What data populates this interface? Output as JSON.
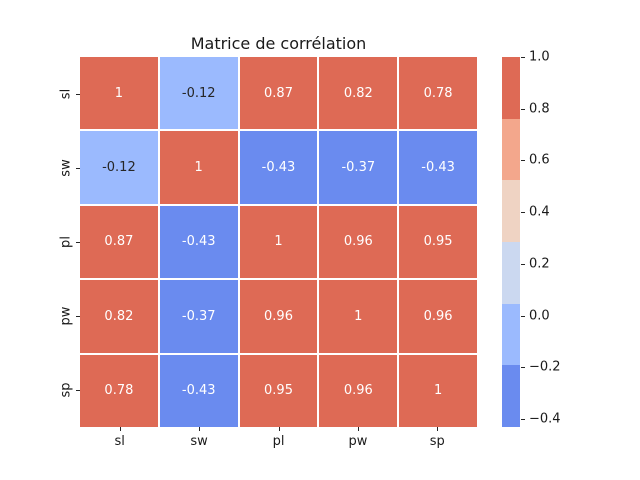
{
  "figure": {
    "background": "#ffffff"
  },
  "chart_data": {
    "type": "heatmap",
    "title": "Matrice de corrélation",
    "x_labels": [
      "sl",
      "sw",
      "pl",
      "pw",
      "sp"
    ],
    "y_labels": [
      "sl",
      "sw",
      "pl",
      "pw",
      "sp"
    ],
    "matrix": [
      [
        1,
        -0.12,
        0.87,
        0.82,
        0.78
      ],
      [
        -0.12,
        1,
        -0.43,
        -0.37,
        -0.43
      ],
      [
        0.87,
        -0.43,
        1,
        0.96,
        0.95
      ],
      [
        0.82,
        -0.37,
        0.96,
        1,
        0.96
      ],
      [
        0.78,
        -0.43,
        0.95,
        0.96,
        1
      ]
    ],
    "cell_text": [
      [
        "1",
        "-0.12",
        "0.87",
        "0.82",
        "0.78"
      ],
      [
        "-0.12",
        "1",
        "-0.43",
        "-0.37",
        "-0.43"
      ],
      [
        "0.87",
        "-0.43",
        "1",
        "0.96",
        "0.95"
      ],
      [
        "0.82",
        "-0.37",
        "0.96",
        "1",
        "0.96"
      ],
      [
        "0.78",
        "-0.43",
        "0.95",
        "0.96",
        "1"
      ]
    ],
    "grid_line_color": "#ffffff",
    "colormap": {
      "name": "coolwarm-discrete-6",
      "vmin": -0.43,
      "vmax": 1.0,
      "n_bins": 6,
      "colors": [
        "#6A8BEF",
        "#9BBAFE",
        "#CBD8F0",
        "#EFD3C3",
        "#F3A78C",
        "#DE6A55"
      ],
      "text_colors": [
        "#ffffff",
        "#262626",
        "#262626",
        "#262626",
        "#262626",
        "#ffffff"
      ]
    },
    "colorbar": {
      "position": "right",
      "tick_labels": [
        "1.0",
        "0.8",
        "0.6",
        "0.4",
        "0.2",
        "0.0",
        "−0.2",
        "−0.4"
      ],
      "tick_values": [
        1.0,
        0.8,
        0.6,
        0.4,
        0.2,
        0.0,
        -0.2,
        -0.4
      ]
    }
  }
}
